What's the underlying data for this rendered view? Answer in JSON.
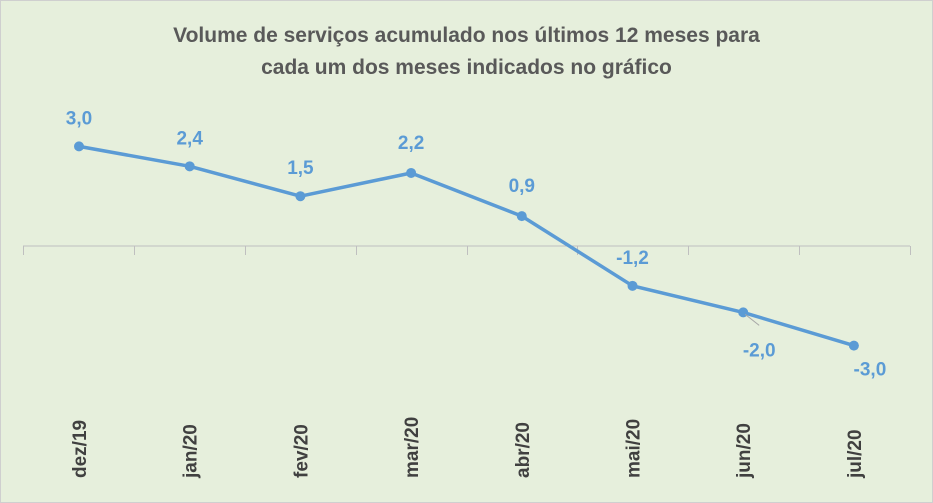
{
  "title_lines": [
    "Volume de serviços acumulado nos últimos 12 meses para",
    "cada um dos meses indicados no gráfico"
  ],
  "colors": {
    "background": "#e6efdc",
    "line": "#5b9bd5",
    "axis": "#bfbfbf",
    "tick_text": "#404040",
    "title_text": "#595959"
  },
  "chart_data": {
    "type": "line",
    "title": "Volume de serviços acumulado nos últimos 12 meses para cada um dos meses indicados no gráfico",
    "categories": [
      "dez/19",
      "jan/20",
      "fev/20",
      "mar/20",
      "abr/20",
      "mai/20",
      "jun/20",
      "jul/20"
    ],
    "series": [
      {
        "values": [
          3.0,
          2.4,
          1.5,
          2.2,
          0.9,
          -1.2,
          -2.0,
          -3.0
        ],
        "labels": [
          "3,0",
          "2,4",
          "1,5",
          "2,2",
          "0,9",
          "-1,2",
          "-2,0",
          "-3,0"
        ]
      }
    ],
    "xlabel": "",
    "ylabel": "",
    "ylim": [
      -3.0,
      3.0
    ],
    "grid": false,
    "legend": "none"
  }
}
